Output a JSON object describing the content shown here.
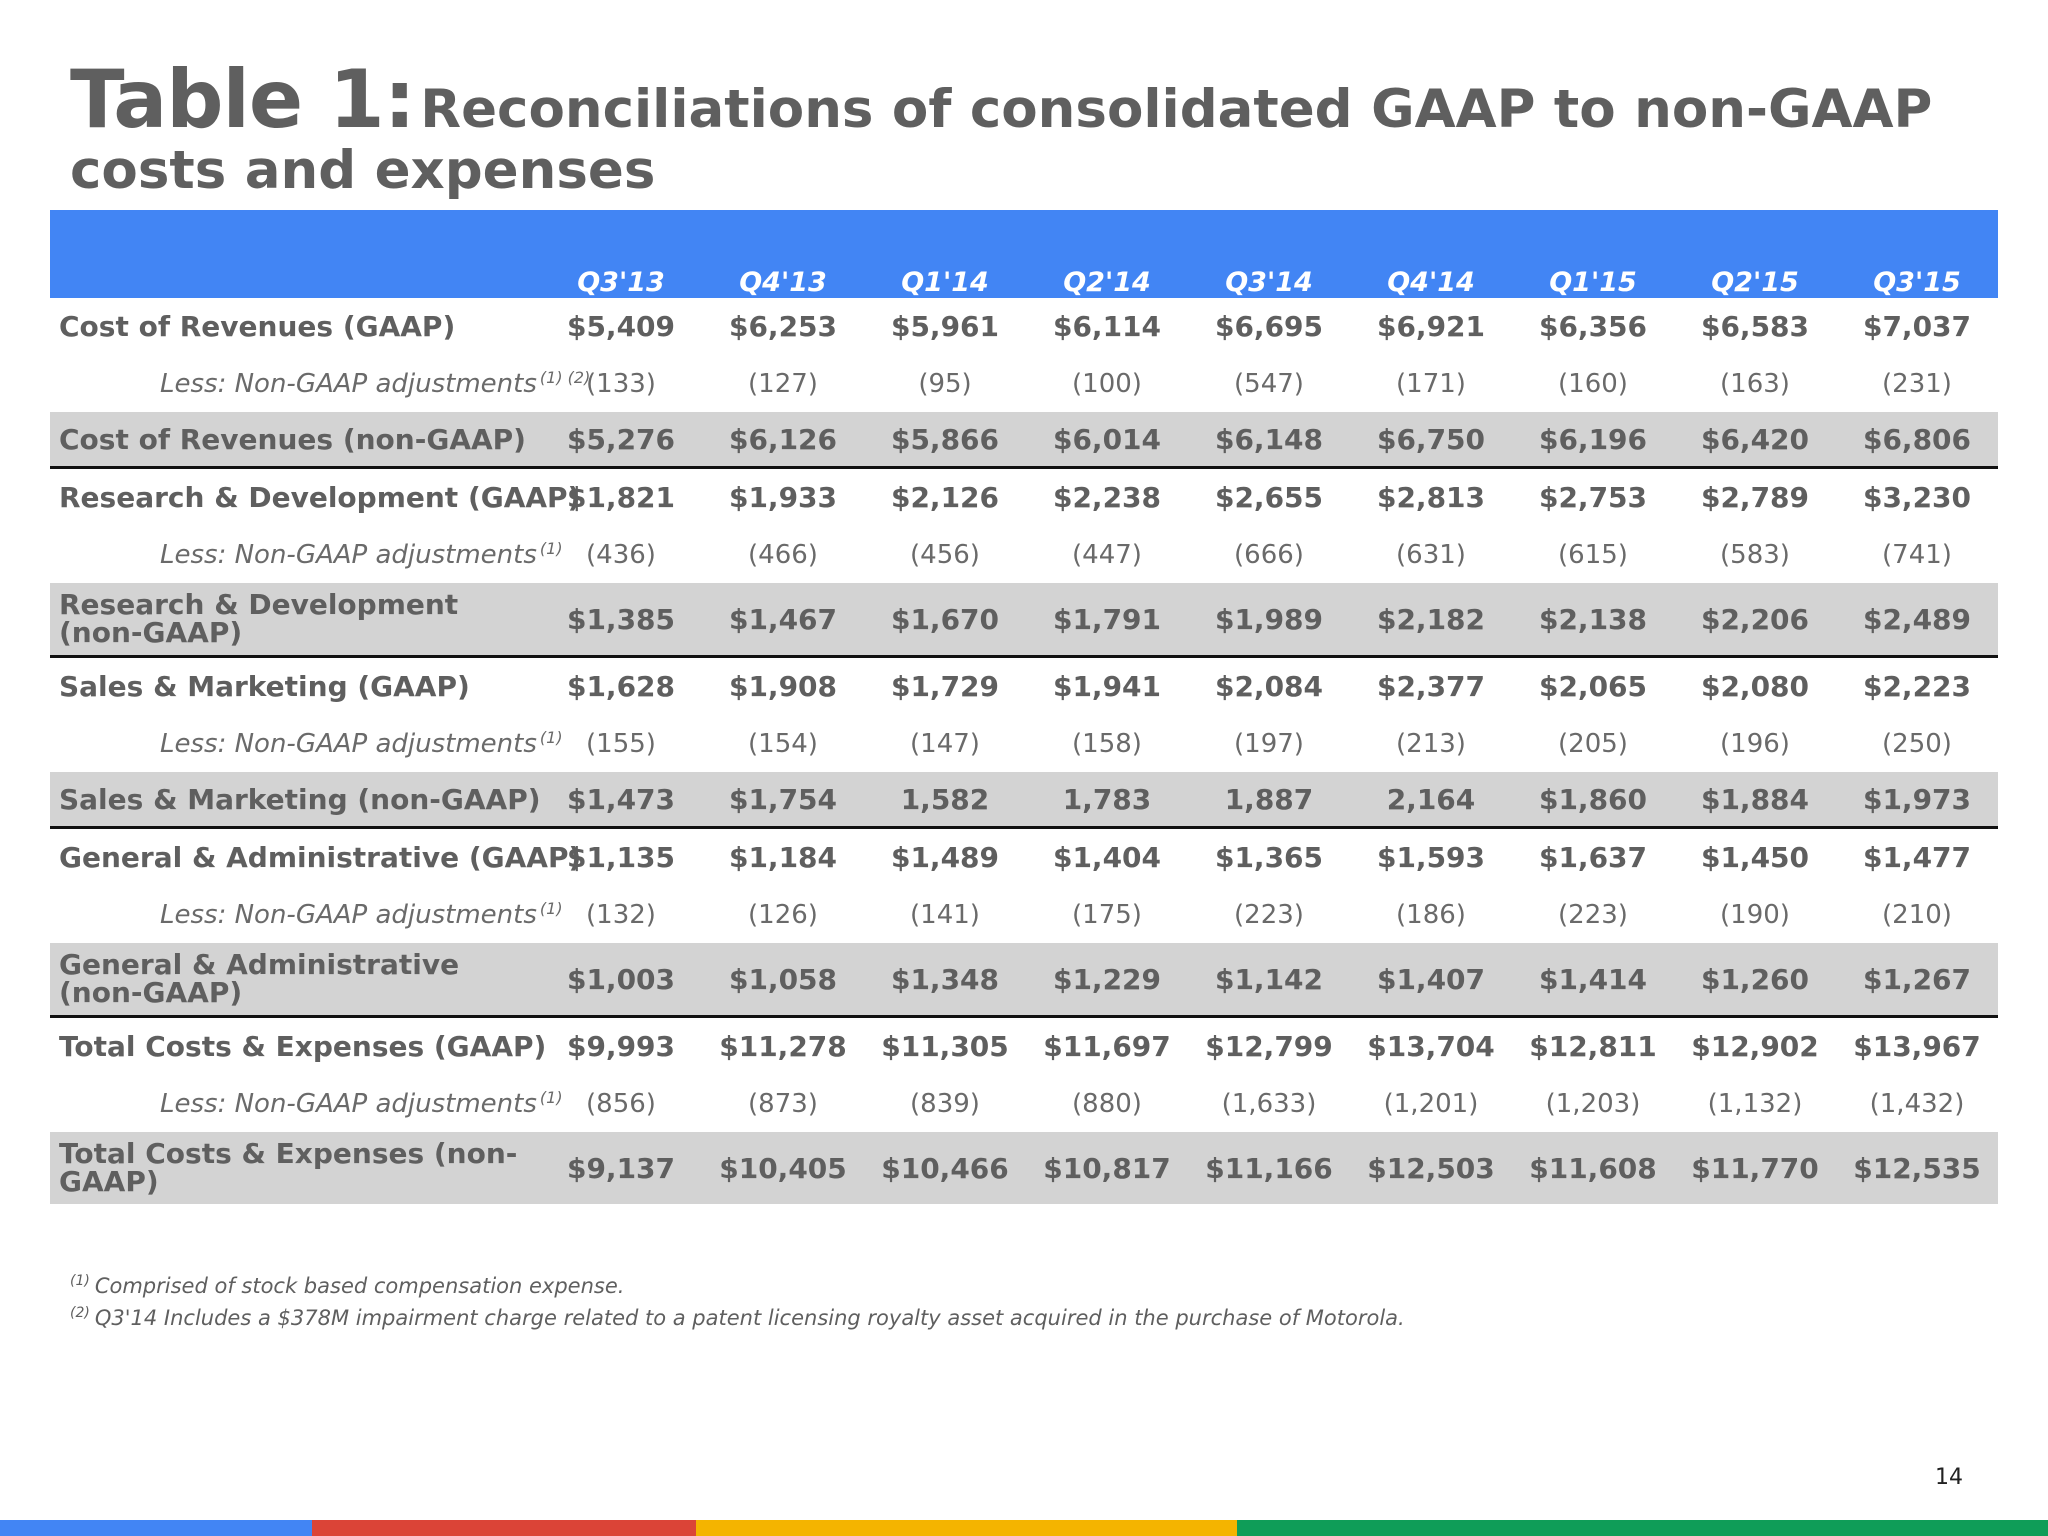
{
  "title": {
    "big": "Table 1:",
    "rest": "Reconciliations of consolidated GAAP to non-GAAP",
    "line2": "costs and expenses"
  },
  "quarters": [
    "Q3'13",
    "Q4'13",
    "Q1'14",
    "Q2'14",
    "Q3'14",
    "Q4'14",
    "Q1'15",
    "Q2'15",
    "Q3'15"
  ],
  "rows": [
    {
      "label": "Cost of Revenues (GAAP)",
      "values": [
        "$5,409",
        "$6,253",
        "$5,961",
        "$6,114",
        "$6,695",
        "$6,921",
        "$6,356",
        "$6,583",
        "$7,037"
      ]
    },
    {
      "label": "Less: Non-GAAP adjustments",
      "note": "(1) (2)",
      "values": [
        "(133)",
        "(127)",
        "(95)",
        "(100)",
        "(547)",
        "(171)",
        "(160)",
        "(163)",
        "(231)"
      ]
    },
    {
      "label": "Cost of Revenues  (non-GAAP)",
      "values": [
        "$5,276",
        "$6,126",
        "$5,866",
        "$6,014",
        "$6,148",
        "$6,750",
        "$6,196",
        "$6,420",
        "$6,806"
      ]
    },
    {
      "label": "Research & Development (GAAP)",
      "values": [
        "$1,821",
        "$1,933",
        "$2,126",
        "$2,238",
        "$2,655",
        "$2,813",
        "$2,753",
        "$2,789",
        "$3,230"
      ]
    },
    {
      "label": "Less: Non-GAAP adjustments",
      "note": "(1)",
      "values": [
        "(436)",
        "(466)",
        "(456)",
        "(447)",
        "(666)",
        "(631)",
        "(615)",
        "(583)",
        "(741)"
      ]
    },
    {
      "label": "Research & Development (non-GAAP)",
      "values": [
        "$1,385",
        "$1,467",
        "$1,670",
        "$1,791",
        "$1,989",
        "$2,182",
        "$2,138",
        "$2,206",
        "$2,489"
      ]
    },
    {
      "label": "Sales & Marketing (GAAP)",
      "values": [
        "$1,628",
        "$1,908",
        "$1,729",
        "$1,941",
        "$2,084",
        "$2,377",
        "$2,065",
        "$2,080",
        "$2,223"
      ]
    },
    {
      "label": "Less: Non-GAAP adjustments",
      "note": "(1)",
      "values": [
        "(155)",
        "(154)",
        "(147)",
        "(158)",
        "(197)",
        "(213)",
        "(205)",
        "(196)",
        "(250)"
      ]
    },
    {
      "label": "Sales & Marketing (non-GAAP)",
      "values": [
        "$1,473",
        "$1,754",
        "1,582",
        "1,783",
        "1,887",
        "2,164",
        "$1,860",
        "$1,884",
        "$1,973"
      ]
    },
    {
      "label": "General & Administrative (GAAP)",
      "values": [
        "$1,135",
        "$1,184",
        "$1,489",
        "$1,404",
        "$1,365",
        "$1,593",
        "$1,637",
        "$1,450",
        "$1,477"
      ]
    },
    {
      "label": "Less: Non-GAAP adjustments",
      "note": "(1)",
      "values": [
        "(132)",
        "(126)",
        "(141)",
        "(175)",
        "(223)",
        "(186)",
        "(223)",
        "(190)",
        "(210)"
      ]
    },
    {
      "label": "General & Administrative (non-GAAP)",
      "values": [
        "$1,003",
        "$1,058",
        "$1,348",
        "$1,229",
        "$1,142",
        "$1,407",
        "$1,414",
        "$1,260",
        "$1,267"
      ]
    },
    {
      "label": "Total Costs & Expenses (GAAP)",
      "values": [
        "$9,993",
        "$11,278",
        "$11,305",
        "$11,697",
        "$12,799",
        "$13,704",
        "$12,811",
        "$12,902",
        "$13,967"
      ]
    },
    {
      "label": "Less: Non-GAAP adjustments",
      "note": "(1)",
      "values": [
        "(856)",
        "(873)",
        "(839)",
        "(880)",
        "(1,633)",
        "(1,201)",
        "(1,203)",
        "(1,132)",
        "(1,432)"
      ]
    },
    {
      "label": "Total Costs & Expenses (non-GAAP)",
      "values": [
        "$9,137",
        "$10,405",
        "$10,466",
        "$10,817",
        "$11,166",
        "$12,503",
        "$11,608",
        "$11,770",
        "$12,535"
      ]
    }
  ],
  "footnotes": [
    {
      "marker": "(1)",
      "text": "Comprised of stock based compensation expense."
    },
    {
      "marker": "(2)",
      "text": "Q3'14 Includes a $378M impairment charge related to a patent licensing royalty asset acquired in the purchase of Motorola."
    }
  ],
  "page_number": "14",
  "brand_colors": {
    "header_blue": "#4285f4",
    "red": "#db4437",
    "yellow": "#f4b400",
    "green": "#0f9d58",
    "shaded_row": "#d3d3d3"
  }
}
